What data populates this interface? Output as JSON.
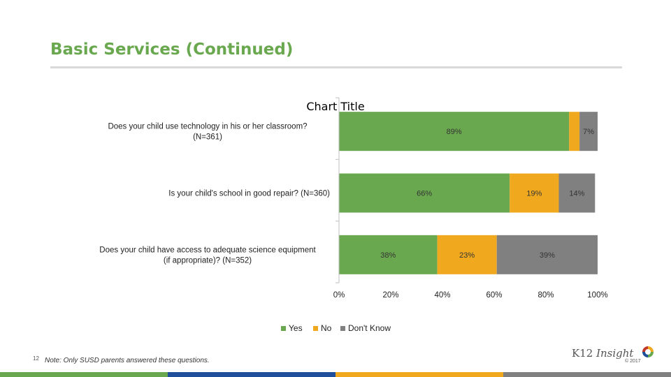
{
  "slide": {
    "title": "Basic Services (Continued)",
    "page_number": "12",
    "footnote": "Note: Only SUSD parents answered these questions.",
    "logo_text_a": "K12 ",
    "logo_text_b": "Insight",
    "copyright": "© 2017"
  },
  "colors": {
    "yes": "#6aa84f",
    "no": "#f0a91f",
    "dont_know": "#808080",
    "title": "#6aa84f",
    "strip": [
      "#6aa84f",
      "#1f4e9b",
      "#f0a91f",
      "#808080"
    ]
  },
  "chart_data": {
    "type": "bar",
    "orientation": "horizontal",
    "stacked": true,
    "title": "Chart Title",
    "categories": [
      "Does your child use technology in his or her classroom? (N=361)",
      "Is your child's school in good repair? (N=360)",
      "Does your child have access to adequate science equipment (if appropriate)? (N=352)"
    ],
    "series": [
      {
        "name": "Yes",
        "color": "#6aa84f",
        "values": [
          89,
          66,
          38
        ],
        "labels": [
          "89%",
          "66%",
          "38%"
        ]
      },
      {
        "name": "No",
        "color": "#f0a91f",
        "values": [
          4,
          19,
          23
        ],
        "labels": [
          "",
          "19%",
          "23%"
        ]
      },
      {
        "name": "Don't Know",
        "color": "#808080",
        "values": [
          7,
          14,
          39
        ],
        "labels": [
          "7%",
          "14%",
          "39%"
        ]
      }
    ],
    "xlim": [
      0,
      100
    ],
    "xticks": [
      "0%",
      "20%",
      "40%",
      "60%",
      "80%",
      "100%"
    ],
    "legend": "bottom",
    "grid": false
  }
}
